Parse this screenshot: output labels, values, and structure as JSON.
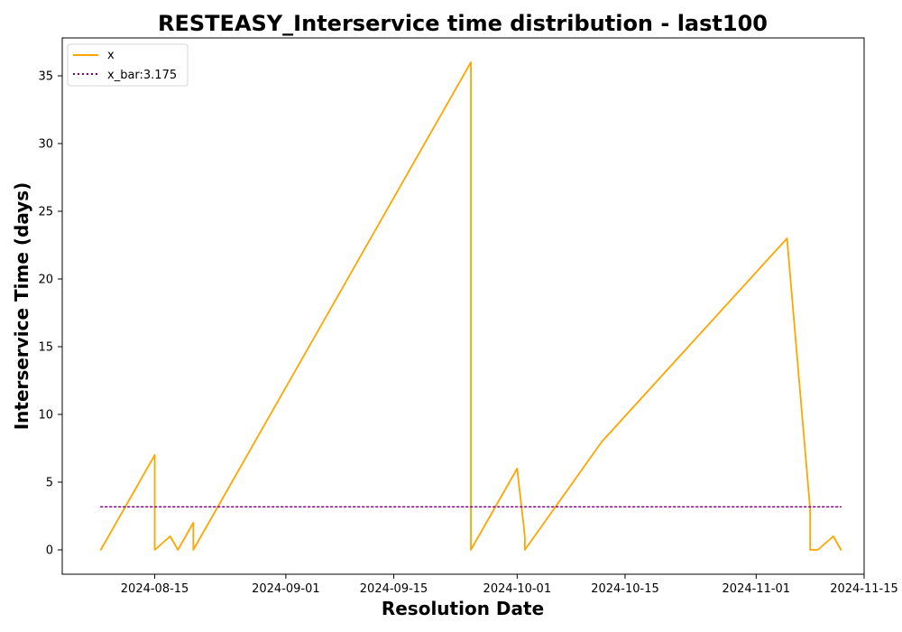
{
  "chart_data": {
    "type": "line",
    "title": "RESTEASY_Interservice time distribution - last100",
    "xlabel": "Resolution Date",
    "ylabel": "Interservice Time (days)",
    "x_ticks": [
      "2024-08-15",
      "2024-09-01",
      "2024-09-15",
      "2024-10-01",
      "2024-10-15",
      "2024-11-01",
      "2024-11-15"
    ],
    "y_ticks": [
      "0",
      "5",
      "10",
      "15",
      "20",
      "25",
      "30",
      "35"
    ],
    "xlim": [
      "2024-08-03",
      "2024-11-15"
    ],
    "ylim": [
      -1.8,
      37.8
    ],
    "grid": false,
    "legend_position": "upper-left",
    "series": [
      {
        "name": "x",
        "color": "#ffa500",
        "style": "solid",
        "points": [
          {
            "x": "2024-08-08",
            "y": 0
          },
          {
            "x": "2024-08-15",
            "y": 7
          },
          {
            "x": "2024-08-15",
            "y": 0
          },
          {
            "x": "2024-08-17",
            "y": 1
          },
          {
            "x": "2024-08-18",
            "y": 0
          },
          {
            "x": "2024-08-20",
            "y": 2
          },
          {
            "x": "2024-08-20",
            "y": 0
          },
          {
            "x": "2024-09-25",
            "y": 36
          },
          {
            "x": "2024-09-25",
            "y": 0
          },
          {
            "x": "2024-10-01",
            "y": 6
          },
          {
            "x": "2024-10-02",
            "y": 1
          },
          {
            "x": "2024-10-02",
            "y": 0
          },
          {
            "x": "2024-10-12",
            "y": 8
          },
          {
            "x": "2024-11-05",
            "y": 23
          },
          {
            "x": "2024-11-08",
            "y": 3
          },
          {
            "x": "2024-11-08",
            "y": 0
          },
          {
            "x": "2024-11-09",
            "y": 0
          },
          {
            "x": "2024-11-11",
            "y": 1
          },
          {
            "x": "2024-11-12",
            "y": 0
          }
        ]
      },
      {
        "name": "x_bar:3.175",
        "color": "#800080",
        "style": "dotted",
        "points": [
          {
            "x": "2024-08-08",
            "y": 3.175
          },
          {
            "x": "2024-11-12",
            "y": 3.175
          }
        ]
      }
    ]
  }
}
